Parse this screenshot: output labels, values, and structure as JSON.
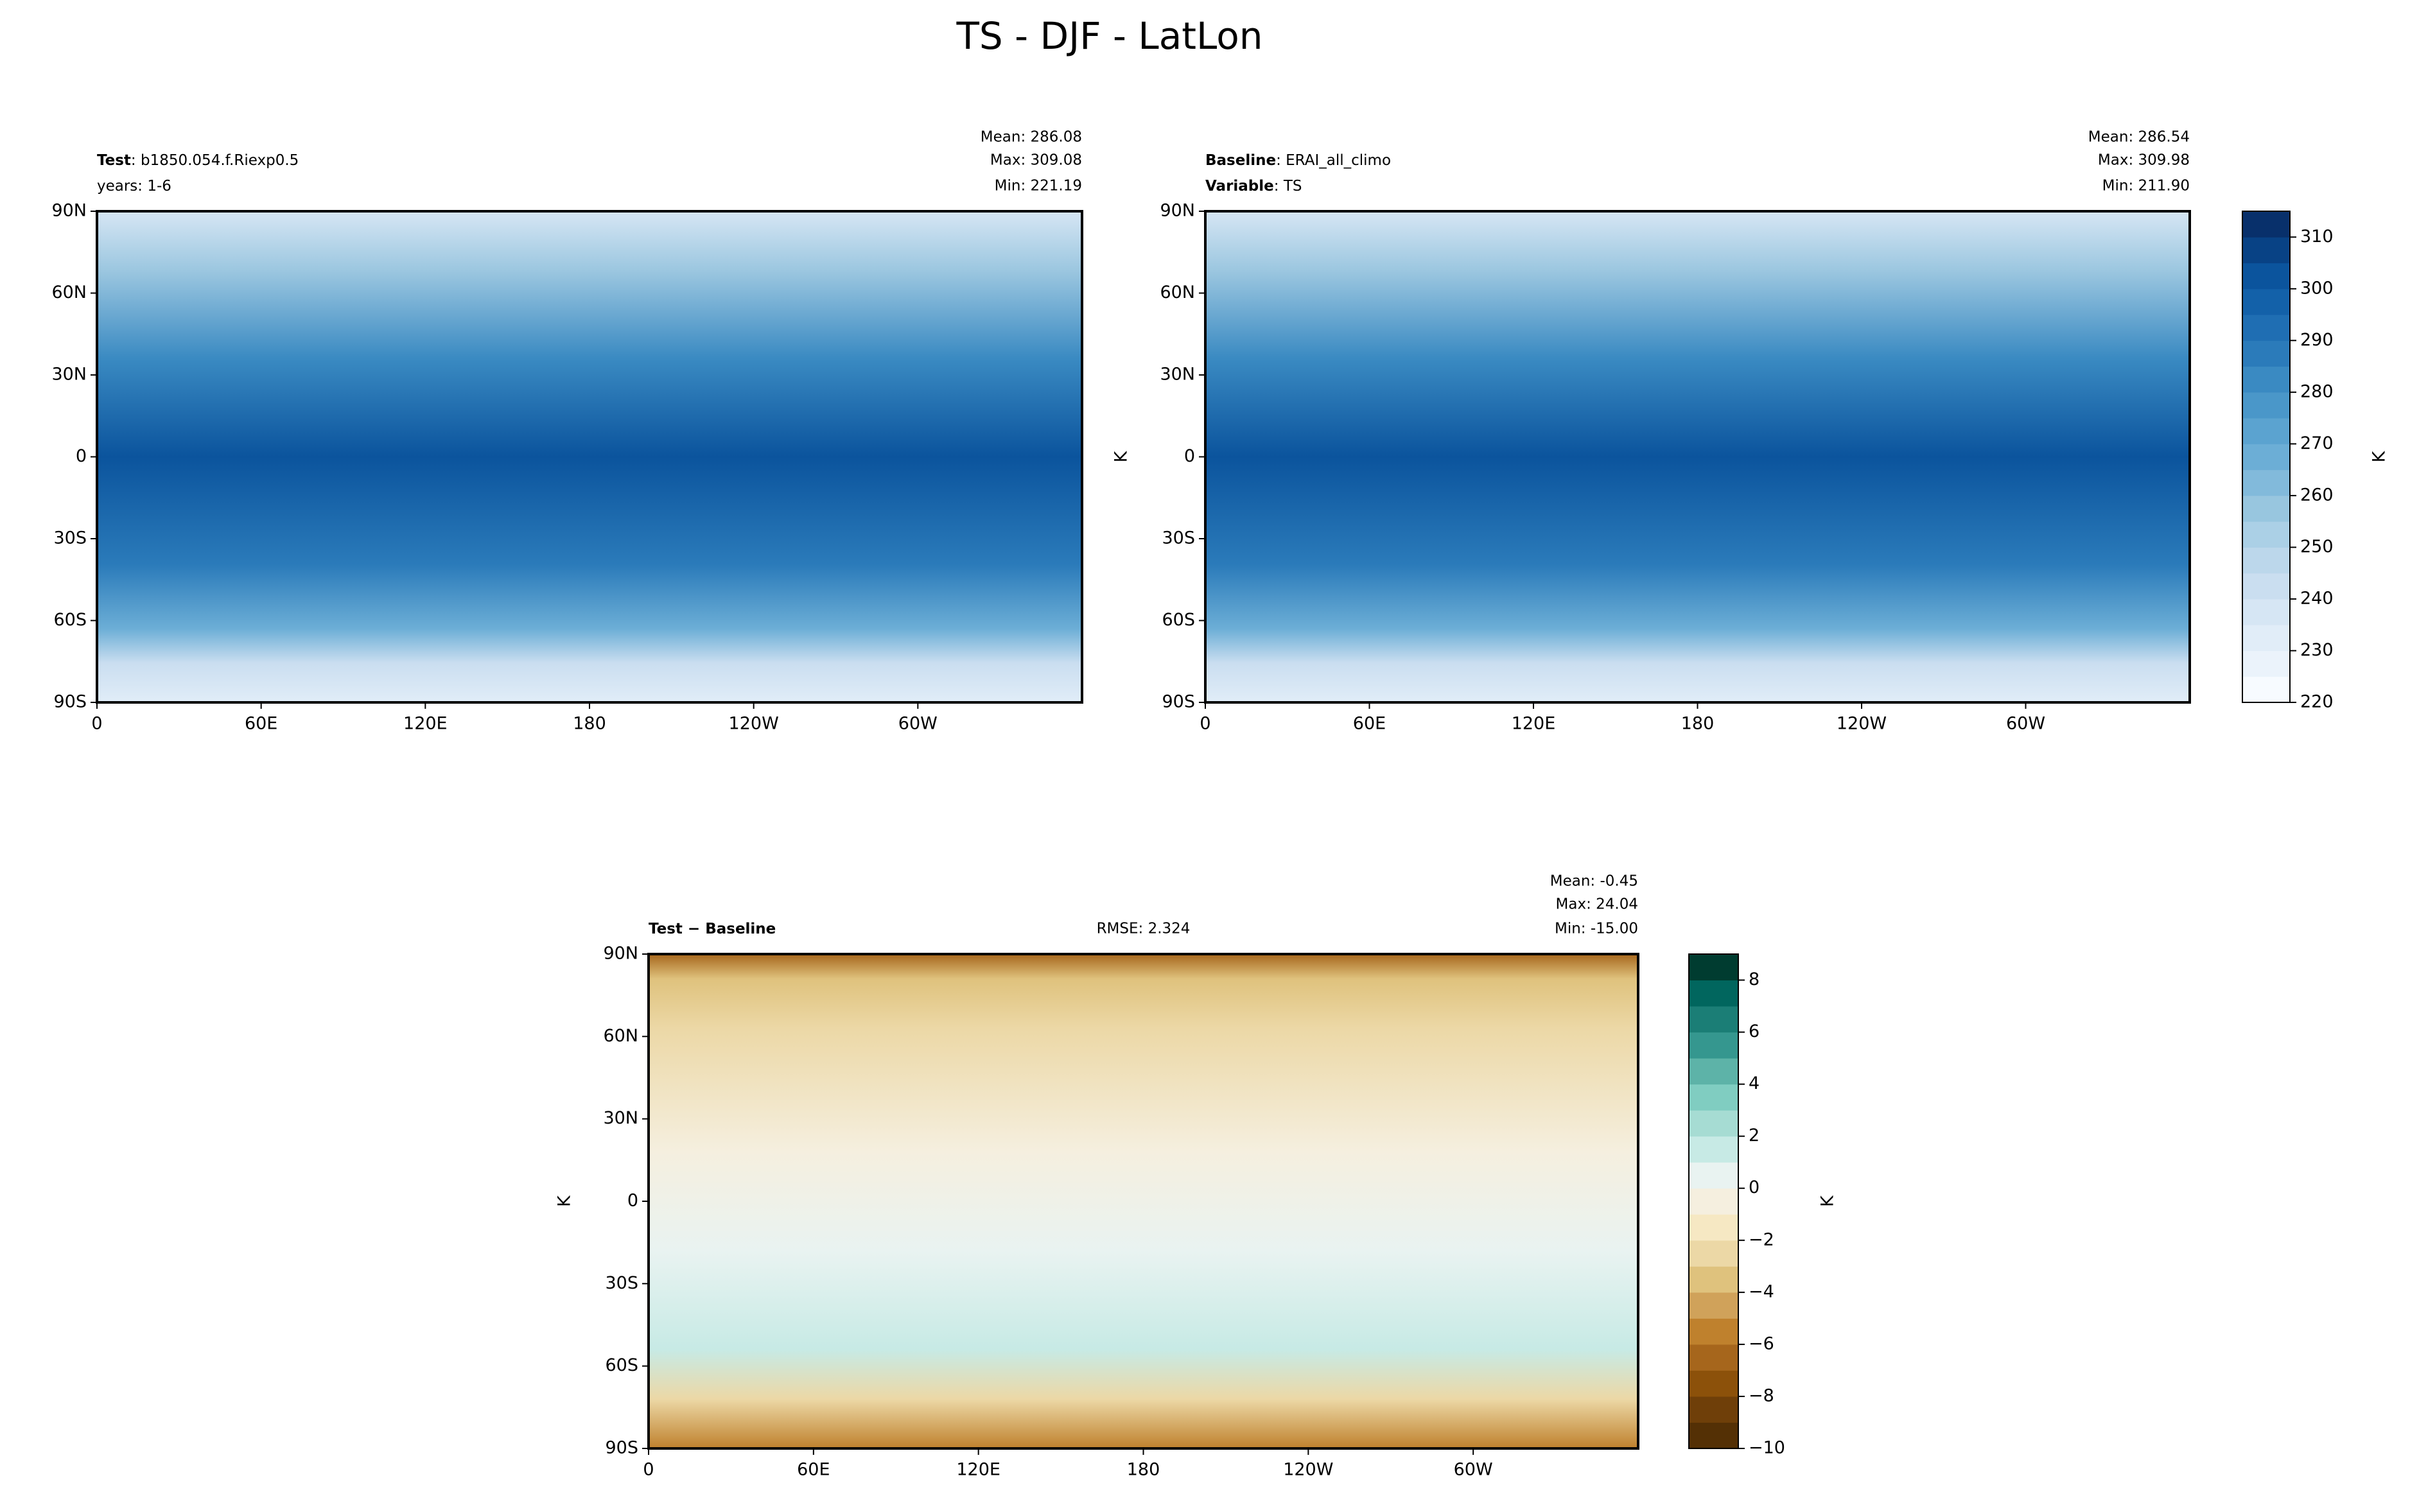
{
  "title": "TS - DJF - LatLon",
  "chart_data": [
    {
      "type": "contour",
      "header": [
        {
          "bold": "Test",
          "text": ": b1850.054.f.Riexp0.5"
        },
        {
          "text": "years: 1-6"
        }
      ],
      "stats": [
        "Mean: 286.08",
        "Max: 309.08",
        "Min: 221.19"
      ],
      "xlim": [
        0,
        360
      ],
      "ylim": [
        -90,
        90
      ],
      "xticks": [
        0,
        {
          "value": 60,
          "label": "60E"
        },
        {
          "value": 120,
          "label": "120E"
        },
        180,
        {
          "value": 240,
          "label": "120W"
        },
        {
          "value": 300,
          "label": "60W"
        }
      ],
      "yticks": [
        {
          "value": -90,
          "label": "90S"
        },
        {
          "value": -60,
          "label": "60S"
        },
        {
          "value": -30,
          "label": "30S"
        },
        0,
        {
          "value": 30,
          "label": "30N"
        },
        {
          "value": 60,
          "label": "60N"
        },
        {
          "value": 90,
          "label": "90N"
        }
      ]
    },
    {
      "type": "contour",
      "header": [
        {
          "bold": "Baseline",
          "text": ": ERAI_all_climo"
        },
        {
          "bold": "Variable",
          "text": ": TS"
        }
      ],
      "stats": [
        "Mean: 286.54",
        "Max: 309.98",
        "Min: 211.90"
      ],
      "ylabel": "K",
      "xlim": [
        0,
        360
      ],
      "ylim": [
        -90,
        90
      ],
      "xticks": [
        0,
        {
          "value": 60,
          "label": "60E"
        },
        {
          "value": 120,
          "label": "120E"
        },
        180,
        {
          "value": 240,
          "label": "120W"
        },
        {
          "value": 300,
          "label": "60W"
        }
      ],
      "yticks": [
        {
          "value": -90,
          "label": "90S"
        },
        {
          "value": -60,
          "label": "60S"
        },
        {
          "value": -30,
          "label": "30S"
        },
        0,
        {
          "value": 30,
          "label": "30N"
        },
        {
          "value": 60,
          "label": "60N"
        },
        {
          "value": 90,
          "label": "90N"
        }
      ],
      "colorbar": {
        "label": "K",
        "ylim": [
          220,
          315
        ],
        "levels": [
          220,
          225,
          230,
          235,
          240,
          245,
          250,
          255,
          260,
          265,
          270,
          275,
          280,
          285,
          290,
          295,
          300,
          305,
          310,
          315
        ],
        "colors": [
          "#f7fbff",
          "#ebf3fb",
          "#e1edf8",
          "#d6e6f4",
          "#cadef0",
          "#bcd7eb",
          "#abd0e6",
          "#98c6df",
          "#82badb",
          "#6caed6",
          "#5ba3d0",
          "#4a97c9",
          "#3a8ac2",
          "#2b7bba",
          "#1f6eb3",
          "#1361a9",
          "#0b549d",
          "#084285",
          "#08306b"
        ],
        "yticks": [
          220,
          230,
          240,
          250,
          260,
          270,
          280,
          290,
          300,
          310
        ]
      }
    },
    {
      "type": "contour",
      "header": [
        {
          "bold": "Test − Baseline"
        }
      ],
      "rmse": "RMSE: 2.324",
      "stats": [
        "Mean: -0.45",
        "Max: 24.04",
        "Min: -15.00"
      ],
      "ylabel": "K",
      "xlim": [
        0,
        360
      ],
      "ylim": [
        -90,
        90
      ],
      "xticks": [
        0,
        {
          "value": 60,
          "label": "60E"
        },
        {
          "value": 120,
          "label": "120E"
        },
        180,
        {
          "value": 240,
          "label": "120W"
        },
        {
          "value": 300,
          "label": "60W"
        }
      ],
      "yticks": [
        {
          "value": -90,
          "label": "90S"
        },
        {
          "value": -60,
          "label": "60S"
        },
        {
          "value": -30,
          "label": "30S"
        },
        0,
        {
          "value": 30,
          "label": "30N"
        },
        {
          "value": 60,
          "label": "60N"
        },
        {
          "value": 90,
          "label": "90N"
        }
      ],
      "colorbar": {
        "label": "K",
        "ylim": [
          -10,
          9
        ],
        "levels": [
          -10,
          -9,
          -8,
          -7,
          -6,
          -5,
          -4,
          -3,
          -2,
          -1,
          0,
          1,
          2,
          3,
          4,
          5,
          6,
          7,
          8,
          9
        ],
        "colors": [
          "#543005",
          "#6f3f09",
          "#8c510a",
          "#a6661c",
          "#bf812d",
          "#d0a25a",
          "#dfc27d",
          "#ecd8a6",
          "#f6e8c3",
          "#f5efdf",
          "#e9f3f1",
          "#c7eae5",
          "#a6dcd3",
          "#80cdc1",
          "#5db3a8",
          "#35978f",
          "#1b7e76",
          "#01665e",
          "#003c30"
        ],
        "yticks": [
          {
            "value": -10,
            "label": "−10"
          },
          {
            "value": -8,
            "label": "−8"
          },
          {
            "value": -6,
            "label": "−6"
          },
          {
            "value": -4,
            "label": "−4"
          },
          {
            "value": -2,
            "label": "−2"
          },
          0,
          2,
          4,
          6,
          8
        ]
      }
    }
  ]
}
